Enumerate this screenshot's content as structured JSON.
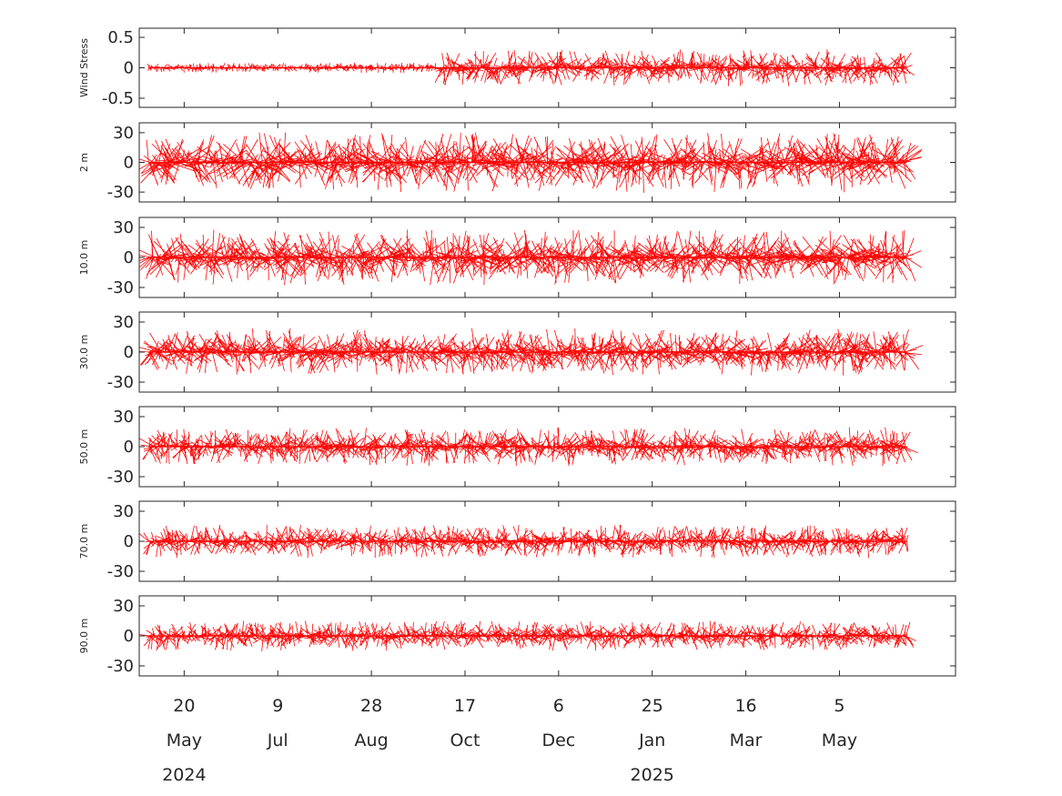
{
  "chart_data": {
    "type": "line",
    "series_color": "#ff0000",
    "date_range": [
      "2024-05-01",
      "2025-06-10"
    ],
    "xlim": [
      "2024-04-26",
      "2025-07-06"
    ],
    "x_ticks": [
      {
        "date": "2024-05-20",
        "day": "20",
        "month": "May",
        "year": "2024"
      },
      {
        "date": "2024-07-09",
        "day": "9",
        "month": "Jul",
        "year": ""
      },
      {
        "date": "2024-08-28",
        "day": "28",
        "month": "Aug",
        "year": ""
      },
      {
        "date": "2024-10-17",
        "day": "17",
        "month": "Oct",
        "year": ""
      },
      {
        "date": "2024-12-06",
        "day": "6",
        "month": "Dec",
        "year": ""
      },
      {
        "date": "2025-01-25",
        "day": "25",
        "month": "Jan",
        "year": "2025"
      },
      {
        "date": "2025-03-16",
        "day": "16",
        "month": "Mar",
        "year": ""
      },
      {
        "date": "2025-05-05",
        "day": "5",
        "month": "May",
        "year": ""
      }
    ],
    "panels": [
      {
        "ylabel": "Wind Stress",
        "ylim": [
          -0.65,
          0.65
        ],
        "yticks": [
          0.5,
          0,
          -0.5
        ],
        "ytick_labels": [
          "0.5",
          "0",
          "-0.5"
        ],
        "amplitude": 0.06,
        "late_amplitude": 0.22
      },
      {
        "ylabel": "2 m",
        "ylim": [
          -40,
          40
        ],
        "yticks": [
          30,
          0,
          -30
        ],
        "ytick_labels": [
          "30",
          "0",
          "-30"
        ],
        "amplitude": 22,
        "late_amplitude": 22
      },
      {
        "ylabel": "10.0 m",
        "ylim": [
          -40,
          40
        ],
        "yticks": [
          30,
          0,
          -30
        ],
        "ytick_labels": [
          "30",
          "0",
          "-30"
        ],
        "amplitude": 20,
        "late_amplitude": 20
      },
      {
        "ylabel": "30.0 m",
        "ylim": [
          -40,
          40
        ],
        "yticks": [
          30,
          0,
          -30
        ],
        "ytick_labels": [
          "30",
          "0",
          "-30"
        ],
        "amplitude": 17,
        "late_amplitude": 17
      },
      {
        "ylabel": "50.0 m",
        "ylim": [
          -40,
          40
        ],
        "yticks": [
          30,
          0,
          -30
        ],
        "ytick_labels": [
          "30",
          "0",
          "-30"
        ],
        "amplitude": 14,
        "late_amplitude": 14
      },
      {
        "ylabel": "70.0 m",
        "ylim": [
          -40,
          40
        ],
        "yticks": [
          30,
          0,
          -30
        ],
        "ytick_labels": [
          "30",
          "0",
          "-30"
        ],
        "amplitude": 12,
        "late_amplitude": 12
      },
      {
        "ylabel": "90.0 m",
        "ylim": [
          -40,
          40
        ],
        "yticks": [
          30,
          0,
          -30
        ],
        "ytick_labels": [
          "30",
          "0",
          "-30"
        ],
        "amplitude": 11,
        "late_amplitude": 11
      }
    ]
  }
}
